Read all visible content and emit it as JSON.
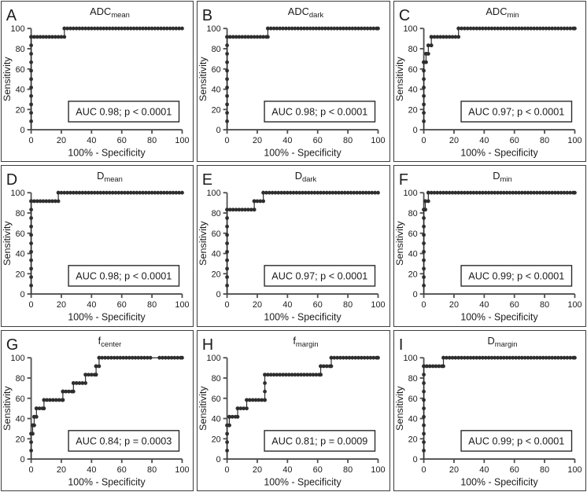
{
  "colors": {
    "curve": "#2e2e2e",
    "axis": "#4f4f4f",
    "text": "#1b1b1b",
    "panel_border": "#3d3d3d",
    "annotation_border": "#2b2b2b",
    "background": "#ffffff"
  },
  "chart_data": [
    {
      "type": "line",
      "subtype": "roc_step",
      "panel_label": "A",
      "title": {
        "base": "ADC",
        "sub": "mean"
      },
      "annotation": "AUC 0.98; p < 0.0001",
      "xlabel": "100% - Specificity",
      "ylabel": "Sensitivity",
      "xlim": [
        0,
        100
      ],
      "ylim": [
        0,
        100
      ],
      "xticks": [
        0,
        20,
        40,
        60,
        80,
        100
      ],
      "yticks": [
        0,
        20,
        40,
        60,
        80,
        100
      ],
      "points": [
        [
          0,
          0
        ],
        [
          0,
          91.7
        ],
        [
          22,
          91.7
        ],
        [
          22,
          100
        ],
        [
          100,
          100
        ]
      ]
    },
    {
      "type": "line",
      "subtype": "roc_step",
      "panel_label": "B",
      "title": {
        "base": "ADC",
        "sub": "dark"
      },
      "annotation": "AUC 0.98; p < 0.0001",
      "xlabel": "100% - Specificity",
      "ylabel": "Sensitivity",
      "xlim": [
        0,
        100
      ],
      "ylim": [
        0,
        100
      ],
      "xticks": [
        0,
        20,
        40,
        60,
        80,
        100
      ],
      "yticks": [
        0,
        20,
        40,
        60,
        80,
        100
      ],
      "points": [
        [
          0,
          0
        ],
        [
          0,
          91.7
        ],
        [
          27,
          91.7
        ],
        [
          27,
          100
        ],
        [
          100,
          100
        ]
      ]
    },
    {
      "type": "line",
      "subtype": "roc_step",
      "panel_label": "C",
      "title": {
        "base": "ADC",
        "sub": "min"
      },
      "annotation": "AUC 0.97; p < 0.0001",
      "xlabel": "100% - Specificity",
      "ylabel": "Sensitivity",
      "xlim": [
        0,
        100
      ],
      "ylim": [
        0,
        100
      ],
      "xticks": [
        0,
        20,
        40,
        60,
        80,
        100
      ],
      "yticks": [
        0,
        20,
        40,
        60,
        80,
        100
      ],
      "points": [
        [
          0,
          0
        ],
        [
          0,
          66.7
        ],
        [
          1.5,
          66.7
        ],
        [
          1.5,
          75
        ],
        [
          3,
          75
        ],
        [
          3,
          83.3
        ],
        [
          5,
          83.3
        ],
        [
          5,
          91.7
        ],
        [
          23,
          91.7
        ],
        [
          23,
          100
        ],
        [
          100,
          100
        ]
      ]
    },
    {
      "type": "line",
      "subtype": "roc_step",
      "panel_label": "D",
      "title": {
        "base": "D",
        "sub": "mean"
      },
      "annotation": "AUC 0.98; p < 0.0001",
      "xlabel": "100% - Specificity",
      "ylabel": "Sensitivity",
      "xlim": [
        0,
        100
      ],
      "ylim": [
        0,
        100
      ],
      "xticks": [
        0,
        20,
        40,
        60,
        80,
        100
      ],
      "yticks": [
        0,
        20,
        40,
        60,
        80,
        100
      ],
      "points": [
        [
          0,
          0
        ],
        [
          0,
          91.7
        ],
        [
          18,
          91.7
        ],
        [
          18,
          100
        ],
        [
          100,
          100
        ]
      ]
    },
    {
      "type": "line",
      "subtype": "roc_step",
      "panel_label": "E",
      "title": {
        "base": "D",
        "sub": "dark"
      },
      "annotation": "AUC 0.97; p < 0.0001",
      "xlabel": "100% - Specificity",
      "ylabel": "Sensitivity",
      "xlim": [
        0,
        100
      ],
      "ylim": [
        0,
        100
      ],
      "xticks": [
        0,
        20,
        40,
        60,
        80,
        100
      ],
      "yticks": [
        0,
        20,
        40,
        60,
        80,
        100
      ],
      "points": [
        [
          0,
          0
        ],
        [
          0,
          83.3
        ],
        [
          18,
          83.3
        ],
        [
          18,
          91.7
        ],
        [
          24,
          91.7
        ],
        [
          24,
          100
        ],
        [
          100,
          100
        ]
      ]
    },
    {
      "type": "line",
      "subtype": "roc_step",
      "panel_label": "F",
      "title": {
        "base": "D",
        "sub": "min"
      },
      "annotation": "AUC 0.99; p < 0.0001",
      "xlabel": "100% - Specificity",
      "ylabel": "Sensitivity",
      "xlim": [
        0,
        100
      ],
      "ylim": [
        0,
        100
      ],
      "xticks": [
        0,
        20,
        40,
        60,
        80,
        100
      ],
      "yticks": [
        0,
        20,
        40,
        60,
        80,
        100
      ],
      "points": [
        [
          0,
          0
        ],
        [
          0,
          83.3
        ],
        [
          1,
          83.3
        ],
        [
          1,
          91.7
        ],
        [
          3,
          91.7
        ],
        [
          3,
          100
        ],
        [
          100,
          100
        ]
      ]
    },
    {
      "type": "line",
      "subtype": "roc_step",
      "panel_label": "G",
      "title": {
        "base": "f",
        "sub": "center"
      },
      "annotation": "AUC 0.84; p = 0.0003",
      "xlabel": "100% - Specificity",
      "ylabel": "Sensitivity",
      "xlim": [
        0,
        100
      ],
      "ylim": [
        0,
        100
      ],
      "xticks": [
        0,
        20,
        40,
        60,
        80,
        100
      ],
      "yticks": [
        0,
        20,
        40,
        60,
        80,
        100
      ],
      "points": [
        [
          0,
          0
        ],
        [
          0,
          25
        ],
        [
          1,
          25
        ],
        [
          1,
          33.3
        ],
        [
          2,
          33.3
        ],
        [
          2,
          41.7
        ],
        [
          3.5,
          41.7
        ],
        [
          3.5,
          50
        ],
        [
          8.5,
          50
        ],
        [
          8.5,
          58.3
        ],
        [
          21,
          58.3
        ],
        [
          21,
          66.7
        ],
        [
          28,
          66.7
        ],
        [
          28,
          75
        ],
        [
          36,
          75
        ],
        [
          36,
          83.3
        ],
        [
          43,
          83.3
        ],
        [
          43,
          91.7
        ],
        [
          45,
          91.7
        ],
        [
          45,
          100
        ],
        [
          100,
          100
        ]
      ],
      "marker_gap_x": [
        80.5,
        83.5
      ]
    },
    {
      "type": "line",
      "subtype": "roc_step",
      "panel_label": "H",
      "title": {
        "base": "f",
        "sub": "margin"
      },
      "annotation": "AUC 0.81; p = 0.0009",
      "xlabel": "100% - Specificity",
      "ylabel": "Sensitivity",
      "xlim": [
        0,
        100
      ],
      "ylim": [
        0,
        100
      ],
      "xticks": [
        0,
        20,
        40,
        60,
        80,
        100
      ],
      "yticks": [
        0,
        20,
        40,
        60,
        80,
        100
      ],
      "points": [
        [
          0,
          0
        ],
        [
          0,
          33.3
        ],
        [
          1.5,
          33.3
        ],
        [
          1.5,
          41.7
        ],
        [
          7,
          41.7
        ],
        [
          7,
          50
        ],
        [
          13,
          50
        ],
        [
          13,
          58.3
        ],
        [
          25,
          58.3
        ],
        [
          25,
          83.3
        ],
        [
          62,
          83.3
        ],
        [
          62,
          91.7
        ],
        [
          69,
          91.7
        ],
        [
          69,
          100
        ],
        [
          100,
          100
        ]
      ]
    },
    {
      "type": "line",
      "subtype": "roc_step",
      "panel_label": "I",
      "title": {
        "base": "D",
        "sub": "margin"
      },
      "annotation": "AUC 0.99; p < 0.0001",
      "xlabel": "100% - Specificity",
      "ylabel": "Sensitivity",
      "xlim": [
        0,
        100
      ],
      "ylim": [
        0,
        100
      ],
      "xticks": [
        0,
        20,
        40,
        60,
        80,
        100
      ],
      "yticks": [
        0,
        20,
        40,
        60,
        80,
        100
      ],
      "points": [
        [
          0,
          0
        ],
        [
          0,
          91.7
        ],
        [
          13,
          91.7
        ],
        [
          13,
          100
        ],
        [
          100,
          100
        ]
      ]
    }
  ]
}
